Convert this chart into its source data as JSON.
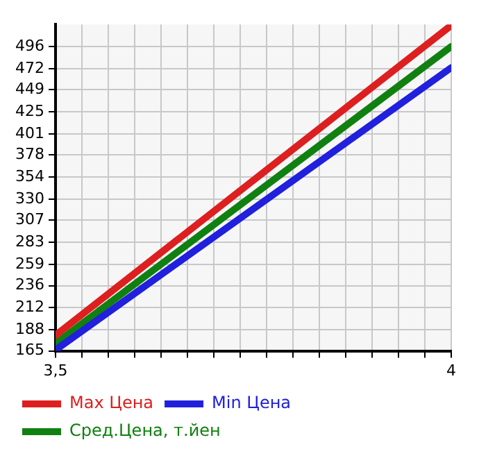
{
  "chart_data": {
    "type": "line",
    "x": [
      3.5,
      4
    ],
    "xlim": [
      3.5,
      4
    ],
    "xticks": [
      {
        "value": 3.5,
        "label": "3,5"
      },
      {
        "value": 3.5333,
        "label": null
      },
      {
        "value": 3.5667,
        "label": null
      },
      {
        "value": 3.6,
        "label": null
      },
      {
        "value": 3.6333,
        "label": null
      },
      {
        "value": 3.6667,
        "label": null
      },
      {
        "value": 3.7,
        "label": null
      },
      {
        "value": 3.7333,
        "label": null
      },
      {
        "value": 3.7667,
        "label": null
      },
      {
        "value": 3.8,
        "label": null
      },
      {
        "value": 3.8333,
        "label": null
      },
      {
        "value": 3.8667,
        "label": null
      },
      {
        "value": 3.9,
        "label": null
      },
      {
        "value": 3.9333,
        "label": null
      },
      {
        "value": 3.9667,
        "label": null
      },
      4
    ],
    "ylim": [
      165,
      520
    ],
    "yticks": [
      165,
      188,
      212,
      236,
      259,
      283,
      307,
      330,
      354,
      378,
      401,
      425,
      449,
      472,
      496
    ],
    "series": [
      {
        "name": "Max Цена",
        "color": "#dd1f1f",
        "values": [
          182,
          519
        ]
      },
      {
        "name": "Min Цена",
        "color": "#2020dd",
        "values": [
          166,
          473
        ]
      },
      {
        "name": "Сред.Цена, т.йен",
        "color": "#108010",
        "values": [
          173,
          496
        ]
      }
    ],
    "grid": true,
    "legend": "bottom",
    "marker": "none",
    "line_style": "solid"
  }
}
